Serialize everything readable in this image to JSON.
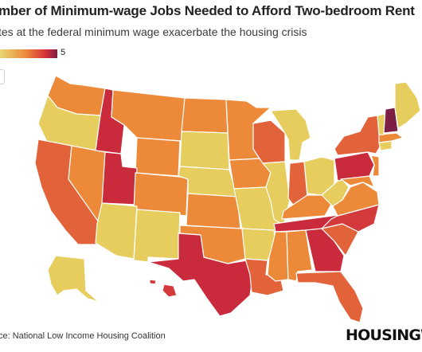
{
  "title": "mber of Minimum-wage Jobs Needed to Afford Two-bedroom Rent",
  "subtitle": "tes at the federal minimum wage exacerbate the housing crisis",
  "legend": {
    "max_label": "5",
    "colors": {
      "low": "#e8d570",
      "mid": "#ec8a3a",
      "high": "#d42f38",
      "max": "#7d1e44"
    }
  },
  "source": "ce: National Low Income Housing Coalition",
  "brand": "HOUSINGWI",
  "chart_data": {
    "type": "choropleth",
    "legend_max": 5,
    "colors": {
      "light": "#e6cd5e",
      "med": "#ec8a3a",
      "med_dark": "#e2623a",
      "red": "#d23a3c",
      "crimson": "#c92b3c",
      "purple": "#7d1e44"
    },
    "states": {
      "WA": "med",
      "OR": "light",
      "CA": "med_dark",
      "NV": "med",
      "ID": "crimson",
      "UT": "crimson",
      "AZ": "light",
      "MT": "med",
      "WY": "med",
      "CO": "med",
      "NM": "light",
      "ND": "med",
      "SD": "light",
      "NE": "light",
      "KS": "med",
      "OK": "med",
      "TX": "crimson",
      "MN": "med",
      "IA": "med",
      "MO": "light",
      "AR": "light",
      "LA": "med_dark",
      "WI": "med_dark",
      "IL": "light",
      "MI": "light",
      "IN": "med_dark",
      "OH": "light",
      "KY": "med",
      "TN": "crimson",
      "MS": "med",
      "AL": "med",
      "GA": "crimson",
      "FL": "med_dark",
      "SC": "med_dark",
      "NC": "red",
      "VA": "med",
      "WV": "light",
      "PA": "crimson",
      "NY": "med_dark",
      "NJ": "med",
      "ME": "light",
      "NH": "purple",
      "VT": "light",
      "MA": "med",
      "CT": "light",
      "MD": "med",
      "AK": "light",
      "HI": "red"
    }
  }
}
